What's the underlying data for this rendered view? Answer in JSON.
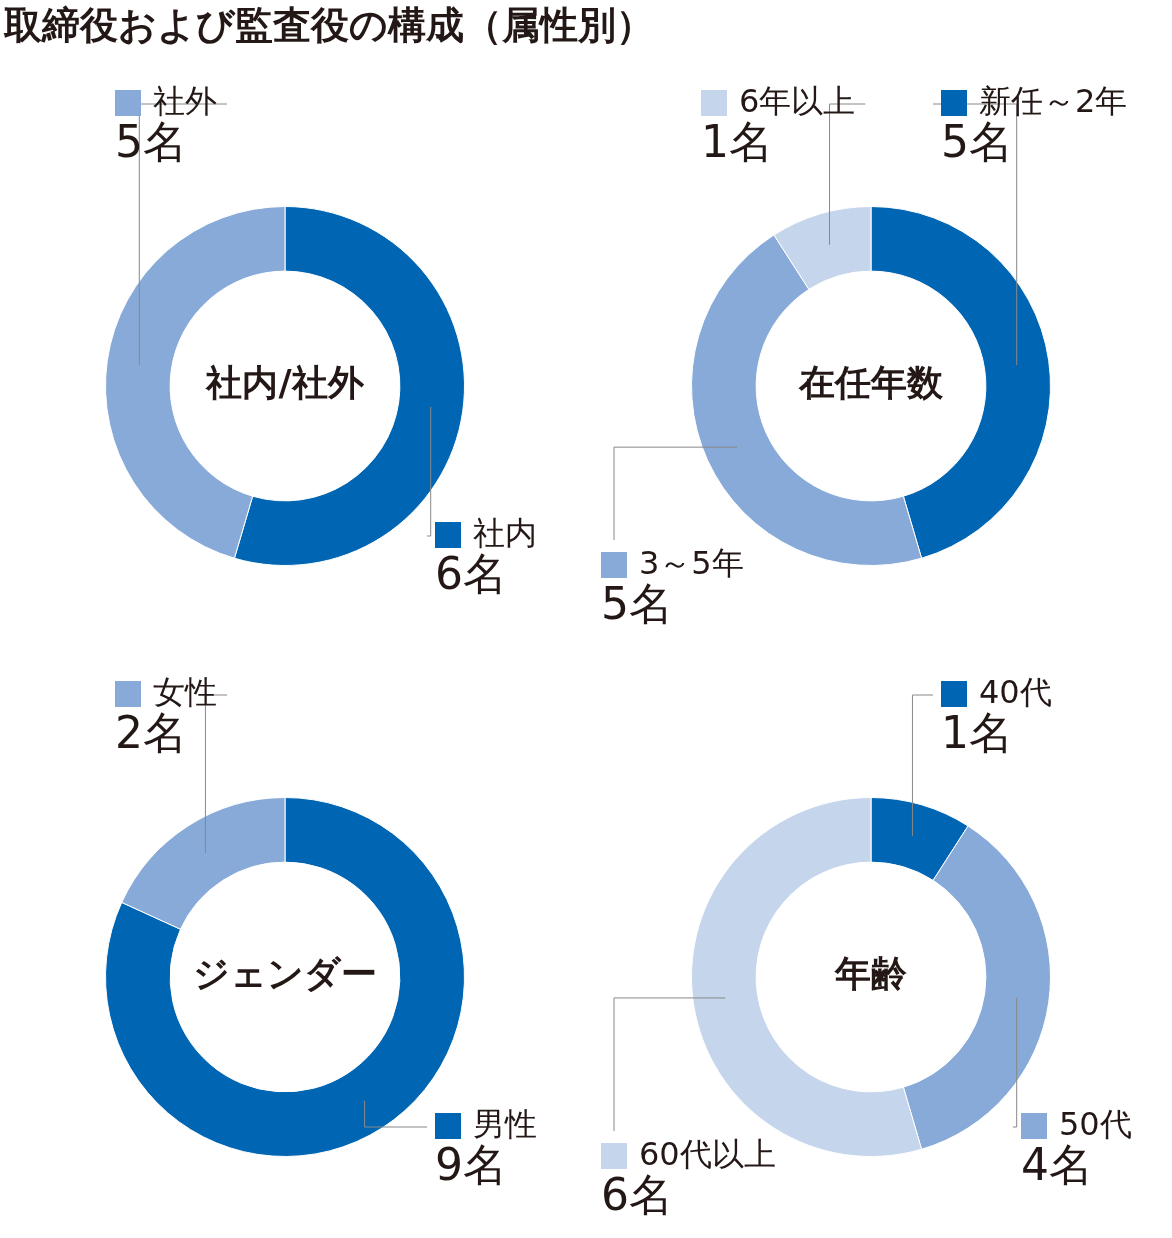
{
  "chart_data": [
    {
      "type": "donut",
      "legend": "top",
      "title": "社内/社外",
      "annotations": [
        "取締役および監査役の構成（属性別）"
      ],
      "categories": [
        "社内",
        "社外"
      ],
      "values": [
        6,
        5
      ],
      "colors": [
        "#0066b3",
        "#88aad8"
      ],
      "value_labels": [
        "6名",
        "5名"
      ]
    },
    {
      "type": "donut",
      "legend": "top",
      "title": "在任年数",
      "categories": [
        "新任～2年",
        "3～5年",
        "6年以上"
      ],
      "values": [
        5,
        5,
        1
      ],
      "colors": [
        "#0066b3",
        "#88aad8",
        "#c5d5ec"
      ],
      "value_labels": [
        "5名",
        "5名",
        "1名"
      ]
    },
    {
      "type": "donut",
      "legend": "top",
      "title": "ジェンダー",
      "categories": [
        "男性",
        "女性"
      ],
      "values": [
        9,
        2
      ],
      "colors": [
        "#0066b3",
        "#88aad8"
      ],
      "value_labels": [
        "9名",
        "2名"
      ]
    },
    {
      "type": "donut",
      "legend": "top",
      "title": "年齢",
      "categories": [
        "40代",
        "50代",
        "60代以上"
      ],
      "values": [
        1,
        4,
        6
      ],
      "colors": [
        "#0066b3",
        "#88aad8",
        "#c5d5ec"
      ],
      "value_labels": [
        "1名",
        "4名",
        "6名"
      ]
    }
  ]
}
